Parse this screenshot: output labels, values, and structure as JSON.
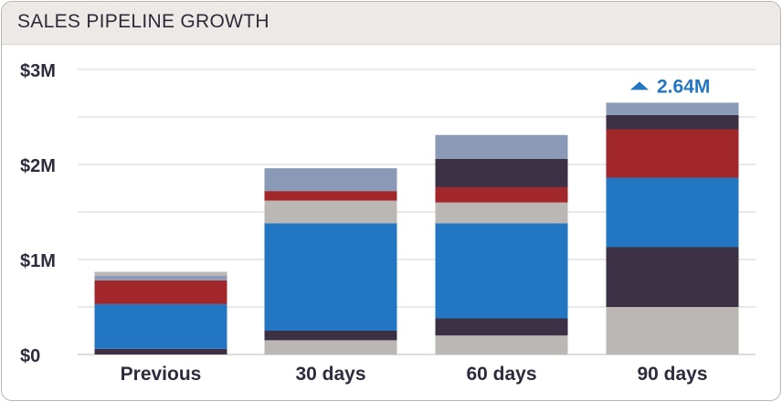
{
  "title": "SALES PIPELINE GROWTH",
  "chart_data": {
    "type": "bar",
    "stacked": true,
    "categories": [
      "Previous",
      "30 days",
      "60 days",
      "90 days"
    ],
    "ylim": [
      0,
      3000000
    ],
    "yticks": [
      {
        "value": 0,
        "label": "$0"
      },
      {
        "value": 1000000,
        "label": "$1M"
      },
      {
        "value": 2000000,
        "label": "$2M"
      },
      {
        "value": 3000000,
        "label": "$3M"
      }
    ],
    "grid": true,
    "series": [
      {
        "color": "#bab7b4",
        "values": [
          0,
          150000,
          200000,
          500000
        ]
      },
      {
        "color": "#3c3045",
        "values": [
          60000,
          100000,
          180000,
          630000
        ]
      },
      {
        "color": "#2276c2",
        "values": [
          470000,
          1130000,
          1000000,
          730000
        ]
      },
      {
        "color": "#bab7b4",
        "values": [
          0,
          240000,
          220000,
          0
        ]
      },
      {
        "color": "#a1272b",
        "values": [
          250000,
          100000,
          160000,
          510000
        ]
      },
      {
        "color": "#3c3045",
        "values": [
          0,
          0,
          300000,
          150000
        ]
      },
      {
        "color": "#8a9ab6",
        "values": [
          50000,
          240000,
          250000,
          130000
        ]
      },
      {
        "color": "#bab7b4",
        "values": [
          40000,
          0,
          0,
          0
        ]
      }
    ],
    "annotation": {
      "category": "90 days",
      "text": "2.64M",
      "color": "#2276c2",
      "icon": "triangle-up-icon"
    }
  }
}
